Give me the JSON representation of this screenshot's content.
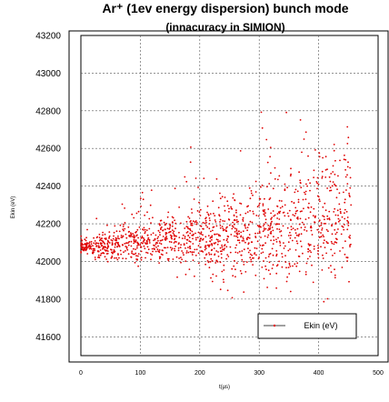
{
  "chart_data": {
    "type": "scatter",
    "title": "Ar⁺ (1ev energy dispersion) bunch mode",
    "subtitle": "(innacuracy in SIMION)",
    "xlabel": "t(µs)",
    "ylabel": "Ekin (eV)",
    "xlim": [
      0,
      500
    ],
    "ylim": [
      41500,
      43200
    ],
    "x_ticks": [
      "0",
      "100",
      "200",
      "300",
      "400",
      "500"
    ],
    "y_ticks": [
      "43200",
      "43000",
      "42800",
      "42600",
      "42400",
      "42200",
      "42000",
      "41800",
      "41600"
    ],
    "grid": true,
    "legend_position": "bottom-right",
    "series": [
      {
        "name": "Ekin (eV)",
        "color": "#e00000",
        "marker": "dot",
        "trend_points": [
          {
            "x": 0,
            "y": 42080
          },
          {
            "x": 100,
            "y": 42095
          },
          {
            "x": 200,
            "y": 42120
          },
          {
            "x": 250,
            "y": 42135
          },
          {
            "x": 300,
            "y": 42160
          },
          {
            "x": 350,
            "y": 42190
          },
          {
            "x": 400,
            "y": 42230
          },
          {
            "x": 450,
            "y": 42290
          }
        ]
      }
    ]
  }
}
